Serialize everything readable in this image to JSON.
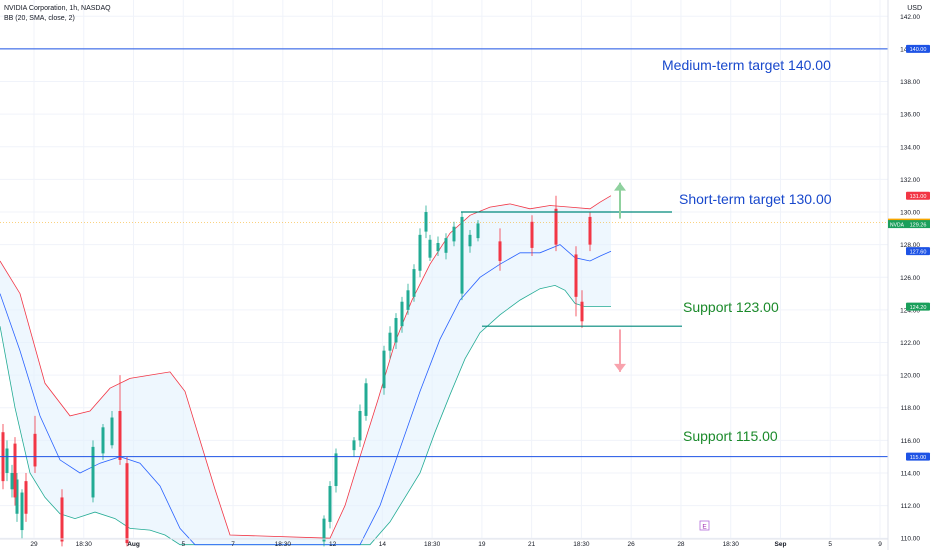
{
  "header": {
    "symbol_line": "NVIDIA Corporation, 1h, NASDAQ",
    "indicator_line": "BB (20, SMA, close, 2)",
    "currency": "USD"
  },
  "colors": {
    "up": "#22ab94",
    "down": "#f23645",
    "bb_upper": "#f23645",
    "bb_lower": "#22ab94",
    "bb_basis": "#2962ff",
    "bb_fill": "#e3f2fd",
    "level_line": "#1e53e5",
    "short_line": "#00897b",
    "annotation_blue": "#1848cc",
    "annotation_green": "#1b8a2a",
    "axis_text": "#131722",
    "grid": "#f0f3fa"
  },
  "chart_data": {
    "type": "candlestick",
    "y_axis": {
      "ticks": [
        "142.00",
        "140.00",
        "138.00",
        "136.00",
        "134.00",
        "132.00",
        "130.00",
        "128.00",
        "126.00",
        "124.00",
        "122.00",
        "120.00",
        "118.00",
        "116.00",
        "114.00",
        "112.00",
        "110.00"
      ],
      "range": [
        109.4,
        143.0
      ]
    },
    "x_axis": {
      "ticks": [
        "29",
        "18:30",
        "Aug",
        "5",
        "7",
        "18:30",
        "12",
        "14",
        "18:30",
        "19",
        "21",
        "18:30",
        "26",
        "28",
        "18:30",
        "Sep",
        "5",
        "9"
      ]
    },
    "horizontal_levels": [
      {
        "price": 140.0,
        "label": "Medium-term target 140.00",
        "color": "blue"
      },
      {
        "price": 115.0,
        "label": "Support 115.00",
        "color": "green"
      }
    ],
    "segment_levels": [
      {
        "price": 130.0,
        "label": "Short-term target 130.00",
        "color": "blue"
      },
      {
        "price": 123.0,
        "label": "Support 123.00",
        "color": "green"
      }
    ],
    "arrows": [
      {
        "direction": "up",
        "price_from": 129.6,
        "price_to": 131.8
      },
      {
        "direction": "down",
        "price_from": 122.8,
        "price_to": 120.2
      }
    ],
    "price_badges": [
      {
        "value": "140.00",
        "style": "blue"
      },
      {
        "value": "131.00",
        "style": "red"
      },
      {
        "value": "129.35",
        "prefix": "Pre",
        "style": "orange"
      },
      {
        "value": "129.26",
        "prefix": "NVDA",
        "style": "green"
      },
      {
        "value": "127.60",
        "style": "blue"
      },
      {
        "value": "124.20",
        "style": "green"
      },
      {
        "value": "115.00",
        "style": "blue"
      }
    ],
    "event_marker": "E",
    "candles_up": [
      [
        114,
        116,
        113.5,
        115.5
      ],
      [
        113,
        114.5,
        112.5,
        114
      ],
      [
        111.5,
        114,
        111,
        113.6
      ],
      [
        110.5,
        113,
        110,
        112.8
      ],
      [
        112.5,
        116,
        112.2,
        115.6
      ],
      [
        115.2,
        117,
        114.8,
        116.8
      ],
      [
        115.7,
        117.8,
        115.5,
        117.4
      ],
      [
        109.8,
        111.4,
        109.5,
        111.2
      ],
      [
        111,
        113.5,
        110.6,
        113.2
      ],
      [
        113.2,
        115.5,
        112.8,
        115.2
      ],
      [
        115.4,
        116.2,
        115,
        116
      ],
      [
        116,
        118.2,
        115.6,
        117.8
      ],
      [
        117.5,
        119.8,
        117.2,
        119.5
      ],
      [
        119.2,
        121.8,
        118.8,
        121.5
      ],
      [
        121.5,
        123,
        121,
        122.6
      ],
      [
        122,
        123.8,
        121.6,
        123.5
      ],
      [
        123,
        124.8,
        122.6,
        124.5
      ],
      [
        124,
        125.6,
        123.7,
        125.2
      ],
      [
        124.8,
        126.8,
        124.5,
        126.5
      ],
      [
        126.4,
        129,
        126,
        128.6
      ],
      [
        128.8,
        130.4,
        128.4,
        130
      ],
      [
        127.2,
        128.6,
        127,
        128.3
      ],
      [
        127.6,
        128.5,
        127.3,
        128.1
      ],
      [
        127.5,
        128.7,
        127.1,
        128.4
      ],
      [
        128.2,
        129.4,
        127.9,
        129.1
      ],
      [
        125,
        130,
        124.6,
        129.7
      ],
      [
        127.9,
        128.9,
        127.5,
        128.6
      ],
      [
        128.4,
        129.5,
        128.2,
        129.3
      ]
    ],
    "candles_down": [
      [
        116.5,
        117,
        113,
        113.5
      ],
      [
        115.8,
        116.2,
        112,
        112.5
      ],
      [
        113.5,
        114,
        111,
        111.5
      ],
      [
        112.5,
        113,
        109.5,
        109.8
      ],
      [
        116.4,
        117.5,
        114,
        114.4
      ],
      [
        117.8,
        120,
        114.5,
        114.8
      ],
      [
        114.6,
        115,
        109.5,
        109.7
      ],
      [
        128.2,
        129,
        126.4,
        127
      ],
      [
        129.4,
        129.8,
        127.3,
        127.8
      ],
      [
        130.2,
        131,
        127.6,
        128
      ],
      [
        127.4,
        127.9,
        123.6,
        124.8
      ],
      [
        124.5,
        125.2,
        122.9,
        123.3
      ],
      [
        129.7,
        130,
        127.6,
        128
      ]
    ]
  }
}
